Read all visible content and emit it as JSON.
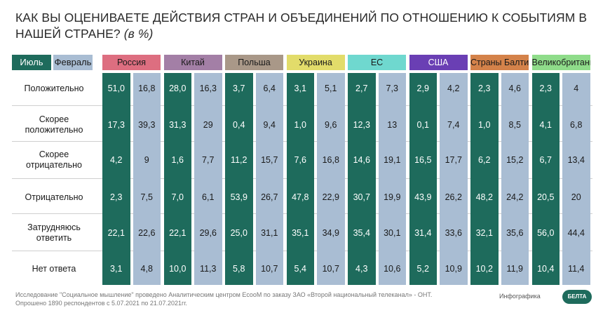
{
  "title": {
    "main": "КАК ВЫ ОЦЕНИВАЕТЕ ДЕЙСТВИЯ СТРАН И ОБЪЕДИНЕНИЙ ПО ОТНОШЕНИЮ К СОБЫТИЯМ В НАШЕЙ СТРАНЕ?",
    "unit": "(в %)"
  },
  "legend": {
    "july": "Июль",
    "february": "Февраль"
  },
  "colors": {
    "july": "#1e6b5c",
    "february": "#a9bdd3"
  },
  "chart_data": {
    "type": "table",
    "title": "КАК ВЫ ОЦЕНИВАЕТЕ ДЕЙСТВИЯ СТРАН И ОБЪЕДИНЕНИЙ ПО ОТНОШЕНИЮ К СОБЫТИЯМ В НАШЕЙ СТРАНЕ? (в %)",
    "series_names": [
      "Июль",
      "Февраль"
    ],
    "categories": [
      "Положительно",
      "Скорее положительно",
      "Скорее отрицательно",
      "Отрицательно",
      "Затрудняюсь ответить",
      "Нет ответа"
    ],
    "countries": [
      {
        "name": "Россия",
        "color": "#dd6e80",
        "july": [
          "51,0",
          "17,3",
          "4,2",
          "2,3",
          "22,1",
          "3,1"
        ],
        "february": [
          "16,8",
          "39,3",
          "9",
          "7,5",
          "22,6",
          "4,8"
        ]
      },
      {
        "name": "Китай",
        "color": "#a37fa6",
        "july": [
          "28,0",
          "31,3",
          "1,6",
          "7,0",
          "22,1",
          "10,0"
        ],
        "february": [
          "16,3",
          "29",
          "7,7",
          "6,1",
          "29,6",
          "11,3"
        ]
      },
      {
        "name": "Польша",
        "color": "#a99888",
        "july": [
          "3,7",
          "0,4",
          "11,2",
          "53,9",
          "25,0",
          "5,8"
        ],
        "february": [
          "6,4",
          "9,4",
          "15,7",
          "26,7",
          "31,1",
          "10,7"
        ]
      },
      {
        "name": "Украина",
        "color": "#e2dc6a",
        "july": [
          "3,1",
          "1,0",
          "7,6",
          "47,8",
          "35,1",
          "5,4"
        ],
        "february": [
          "5,1",
          "9,6",
          "16,8",
          "22,9",
          "34,9",
          "10,7"
        ]
      },
      {
        "name": "ЕС",
        "color": "#6fd8cf",
        "july": [
          "2,7",
          "12,3",
          "14,6",
          "30,7",
          "35,4",
          "4,3"
        ],
        "february": [
          "7,3",
          "13",
          "19,1",
          "19,9",
          "30,1",
          "10,6"
        ]
      },
      {
        "name": "США",
        "color": "#6a3fb4",
        "july": [
          "2,9",
          "0,1",
          "16,5",
          "43,9",
          "31,4",
          "5,2"
        ],
        "february": [
          "4,2",
          "7,4",
          "17,7",
          "26,2",
          "33,6",
          "10,9"
        ]
      },
      {
        "name": "Страны Балтии",
        "color": "#d4824a",
        "july": [
          "2,3",
          "1,0",
          "6,2",
          "48,2",
          "32,1",
          "10,2"
        ],
        "february": [
          "4,6",
          "8,5",
          "15,2",
          "24,2",
          "35,6",
          "11,9"
        ]
      },
      {
        "name": "Великобритания",
        "color": "#8fdc8a",
        "july": [
          "2,3",
          "4,1",
          "6,7",
          "20,5",
          "56,0",
          "10,4"
        ],
        "february": [
          "4",
          "6,8",
          "13,4",
          "20",
          "44,4",
          "11,4"
        ]
      }
    ]
  },
  "footer": {
    "line1": "Исследование \"Социальное мышление\" проведено Аналитическим центром EcooM  по заказу ЗАО «Второй национальный телеканал» - ОНТ.",
    "line2": "Опрошено 1890 респондентов с 5.07.2021 по 21.07.2021гг.",
    "infographic": "Инфографика",
    "logo": "БЕЛТА"
  }
}
